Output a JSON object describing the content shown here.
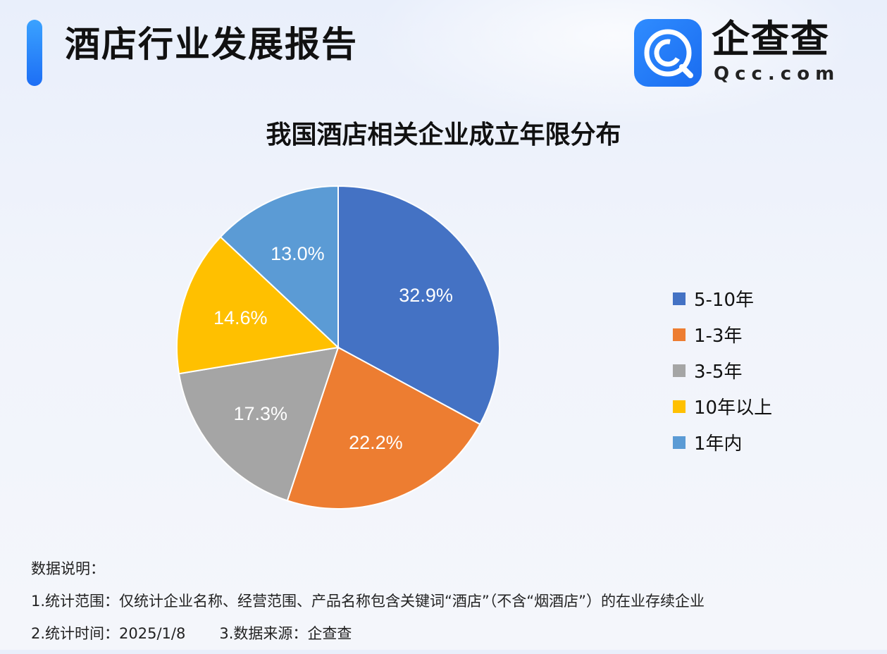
{
  "header": {
    "title": "酒店行业发展报告",
    "logo_name": "企查查",
    "logo_domain": "Qcc.com"
  },
  "chart_data": {
    "type": "pie",
    "title": "我国酒店相关企业成立年限分布",
    "categories": [
      "5-10年",
      "1-3年",
      "3-5年",
      "10年以上",
      "1年内"
    ],
    "values": [
      32.9,
      22.2,
      17.3,
      14.6,
      13.0
    ],
    "value_labels": [
      "32.9%",
      "22.2%",
      "17.3%",
      "14.6%",
      "13.0%"
    ],
    "colors": [
      "#4472c4",
      "#ed7d31",
      "#a5a5a5",
      "#ffc000",
      "#5b9bd5"
    ],
    "start": "12 o'clock, clockwise",
    "legend_position": "right"
  },
  "notes": {
    "heading": "数据说明：",
    "scope": "1.统计范围：仅统计企业名称、经营范围、产品名称包含关键词“酒店”（不含“烟酒店”）的在业存续企业",
    "time": "2.统计时间：2025/1/8",
    "source": "3.数据来源：企查查"
  }
}
